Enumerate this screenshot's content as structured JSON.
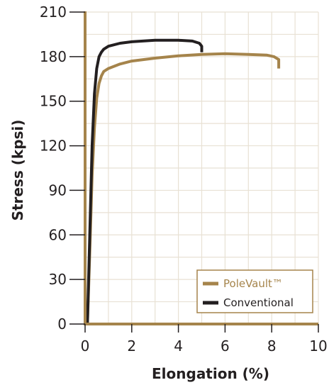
{
  "chart_data": {
    "type": "line",
    "xlabel": "Elongation (%)",
    "ylabel": "Stress (kpsi)",
    "xlim": [
      0,
      10
    ],
    "ylim": [
      0,
      210
    ],
    "xticks": [
      "0",
      "2",
      "4",
      "6",
      "8",
      "10"
    ],
    "yticks": [
      "0",
      "30",
      "60",
      "90",
      "120",
      "150",
      "180",
      "210"
    ],
    "grid": true,
    "legend_position": "bottom-right",
    "series": [
      {
        "name": "PoleVault™",
        "color": "#a5844b",
        "x": [
          0.1,
          0.2,
          0.3,
          0.4,
          0.5,
          0.6,
          0.7,
          0.8,
          1.0,
          1.5,
          2.0,
          3.0,
          4.0,
          5.0,
          6.0,
          7.0,
          7.8,
          8.1,
          8.3,
          8.3
        ],
        "y": [
          0,
          48,
          100,
          132,
          152,
          162,
          167,
          170,
          172,
          175,
          177,
          179,
          180.5,
          181.5,
          182,
          181.5,
          181,
          180,
          178,
          172
        ]
      },
      {
        "name": "Conventional",
        "color": "#231f20",
        "x": [
          0.1,
          0.2,
          0.3,
          0.4,
          0.5,
          0.6,
          0.7,
          0.8,
          1.0,
          1.5,
          2.0,
          3.0,
          4.0,
          4.6,
          4.9,
          5.0,
          5.0
        ],
        "y": [
          0,
          60,
          120,
          155,
          172,
          180,
          183,
          185,
          187,
          189,
          190,
          191,
          191,
          190.5,
          189,
          187,
          183
        ]
      }
    ]
  }
}
